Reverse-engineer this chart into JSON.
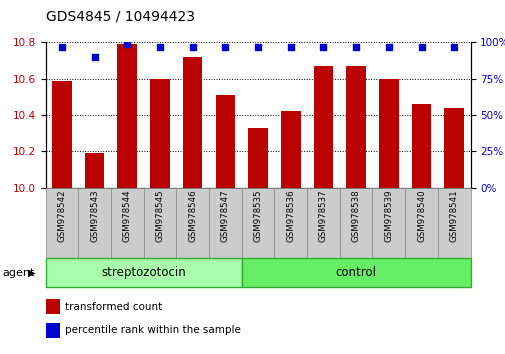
{
  "title": "GDS4845 / 10494423",
  "categories": [
    "GSM978542",
    "GSM978543",
    "GSM978544",
    "GSM978545",
    "GSM978546",
    "GSM978547",
    "GSM978535",
    "GSM978536",
    "GSM978537",
    "GSM978538",
    "GSM978539",
    "GSM978540",
    "GSM978541"
  ],
  "bar_values": [
    10.585,
    10.19,
    10.79,
    10.6,
    10.72,
    10.51,
    10.33,
    10.42,
    10.67,
    10.67,
    10.6,
    10.46,
    10.44
  ],
  "percentile_values": [
    97,
    90,
    99,
    97,
    97,
    97,
    97,
    97,
    97,
    97,
    97,
    97,
    97
  ],
  "bar_color": "#bb0000",
  "percentile_color": "#0000cc",
  "ylim_left": [
    10.0,
    10.8
  ],
  "ylim_right": [
    0,
    100
  ],
  "yticks_left": [
    10.0,
    10.2,
    10.4,
    10.6,
    10.8
  ],
  "yticks_right": [
    0,
    25,
    50,
    75,
    100
  ],
  "background_color": "#ffffff",
  "grid_color": "#000000",
  "groups": [
    {
      "label": "streptozotocin",
      "start": 0,
      "end": 6,
      "color": "#aaffaa",
      "border": "#33aa33"
    },
    {
      "label": "control",
      "start": 6,
      "end": 13,
      "color": "#66ee66",
      "border": "#33aa33"
    }
  ],
  "tick_bg_color": "#cccccc",
  "legend_items": [
    {
      "label": "transformed count",
      "color": "#bb0000"
    },
    {
      "label": "percentile rank within the sample",
      "color": "#0000cc"
    }
  ]
}
